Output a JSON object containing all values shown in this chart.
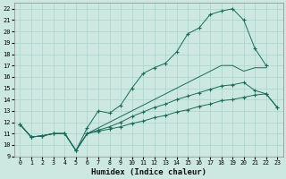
{
  "xlabel": "Humidex (Indice chaleur)",
  "bg_color": "#cce8e0",
  "line_color": "#1a6b5a",
  "grid_color": "#a8d4cc",
  "xlim": [
    -0.5,
    23.5
  ],
  "ylim": [
    9,
    22.5
  ],
  "xticks": [
    0,
    1,
    2,
    3,
    4,
    5,
    6,
    7,
    8,
    9,
    10,
    11,
    12,
    13,
    14,
    15,
    16,
    17,
    18,
    19,
    20,
    21,
    22,
    23
  ],
  "yticks": [
    9,
    10,
    11,
    12,
    13,
    14,
    15,
    16,
    17,
    18,
    19,
    20,
    21,
    22
  ],
  "lines": [
    {
      "x": [
        0,
        1,
        2,
        3,
        4,
        5,
        6,
        7,
        8,
        9,
        10,
        11,
        12,
        13,
        14,
        15,
        16,
        17,
        18,
        19,
        20,
        21,
        22
      ],
      "y": [
        11.8,
        10.7,
        10.8,
        11.0,
        11.0,
        9.5,
        11.5,
        13.0,
        12.8,
        13.5,
        15.0,
        16.3,
        16.8,
        17.2,
        18.2,
        19.8,
        20.3,
        21.5,
        21.8,
        22.0,
        21.0,
        18.5,
        17.0
      ],
      "marker": "+"
    },
    {
      "x": [
        0,
        1,
        2,
        3,
        4,
        5,
        6,
        7,
        8,
        9,
        10,
        11,
        12,
        13,
        14,
        15,
        16,
        17,
        18,
        19,
        20,
        21,
        22,
        23
      ],
      "y": [
        11.8,
        10.7,
        10.8,
        11.0,
        11.0,
        9.5,
        11.0,
        11.5,
        12.0,
        12.5,
        13.0,
        13.5,
        14.0,
        14.5,
        15.0,
        15.5,
        16.0,
        16.5,
        17.0,
        17.0,
        16.5,
        16.8,
        16.8,
        null
      ],
      "marker": null
    },
    {
      "x": [
        0,
        1,
        2,
        3,
        4,
        5,
        6,
        7,
        8,
        9,
        10,
        11,
        12,
        13,
        14,
        15,
        16,
        17,
        18,
        19,
        20,
        21,
        22,
        23
      ],
      "y": [
        11.8,
        10.7,
        10.8,
        11.0,
        11.0,
        9.5,
        11.0,
        11.3,
        11.6,
        12.0,
        12.5,
        12.9,
        13.3,
        13.6,
        14.0,
        14.3,
        14.6,
        14.9,
        15.2,
        15.3,
        15.5,
        14.8,
        14.5,
        13.3
      ],
      "marker": "+"
    },
    {
      "x": [
        0,
        1,
        2,
        3,
        4,
        5,
        6,
        7,
        8,
        9,
        10,
        11,
        12,
        13,
        14,
        15,
        16,
        17,
        18,
        19,
        20,
        21,
        22,
        23
      ],
      "y": [
        11.8,
        10.7,
        10.8,
        11.0,
        11.0,
        9.5,
        11.0,
        11.2,
        11.4,
        11.6,
        11.9,
        12.1,
        12.4,
        12.6,
        12.9,
        13.1,
        13.4,
        13.6,
        13.9,
        14.0,
        14.2,
        14.4,
        14.5,
        13.3
      ],
      "marker": "+"
    }
  ]
}
